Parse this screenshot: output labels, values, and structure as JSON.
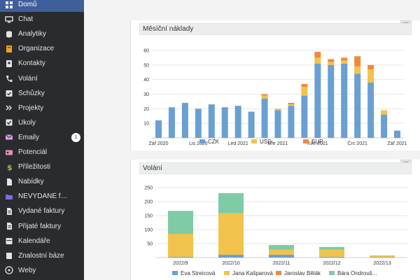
{
  "sidebar": {
    "items": [
      {
        "label": "Domů",
        "icon": "grid-icon",
        "active": true
      },
      {
        "label": "Chat",
        "icon": "monitor-icon"
      },
      {
        "label": "Analytiky",
        "icon": "database-icon"
      },
      {
        "label": "Organizace",
        "icon": "building-icon"
      },
      {
        "label": "Kontakty",
        "icon": "address-book-icon"
      },
      {
        "label": "Volání",
        "icon": "phone-icon"
      },
      {
        "label": "Schůzky",
        "icon": "calendar-check-icon"
      },
      {
        "label": "Projekty",
        "icon": "double-chevron-icon"
      },
      {
        "label": "Úkoly",
        "icon": "checkbox-icon"
      },
      {
        "label": "Emaily",
        "icon": "envelope-icon",
        "badge": "1"
      },
      {
        "label": "Potenciál",
        "icon": "id-card-icon"
      },
      {
        "label": "Příležitosti",
        "icon": "dollar-icon"
      },
      {
        "label": "Nabídky",
        "icon": "file-icon"
      },
      {
        "label": "NEVYDANÉ faktury",
        "icon": "folder-icon"
      },
      {
        "label": "Vydané faktury",
        "icon": "file-invoice-icon"
      },
      {
        "label": "Přijaté faktury",
        "icon": "file-invoice-icon"
      },
      {
        "label": "Kalendáře",
        "icon": "calendar-icon"
      },
      {
        "label": "Znalostní báze",
        "icon": "book-icon"
      },
      {
        "label": "Weby",
        "icon": "globe-icon"
      }
    ]
  },
  "panels": {
    "costs": {
      "title": "Měsíční náklady",
      "menu": "..."
    },
    "calls": {
      "title": "Volání",
      "menu": "..."
    }
  },
  "colors": {
    "blue": "#6a9fd2",
    "yellow": "#f1c34d",
    "orange": "#ee8a3f",
    "green": "#7ecba5",
    "sidebar": "#2a2b2e",
    "active": "#3f5f9b"
  },
  "chart_data": [
    {
      "type": "bar",
      "stacked": true,
      "ylim": [
        0,
        60
      ],
      "yticks": [
        10,
        20,
        30,
        40,
        50,
        60
      ],
      "xtick_labels": [
        {
          "index": 0,
          "label": "Zář 2020"
        },
        {
          "index": 3,
          "label": "Lis 2020"
        },
        {
          "index": 6,
          "label": "Led 2021"
        },
        {
          "index": 9,
          "label": "Bře 2021"
        },
        {
          "index": 12,
          "label": "Kvě 2021"
        },
        {
          "index": 15,
          "label": "Črc 2021"
        },
        {
          "index": 18,
          "label": "Zář 2021"
        },
        {
          "index": 21,
          "label": "Lis 2021"
        },
        {
          "index": 24,
          "label": "Led 2022"
        }
      ],
      "series": [
        {
          "name": "CZK",
          "color": "#6a9fd2",
          "values": [
            12,
            21,
            24,
            20,
            23,
            21,
            22,
            18,
            27,
            19,
            22,
            29,
            51,
            50,
            51,
            44,
            38,
            16,
            5
          ]
        },
        {
          "name": "USD",
          "color": "#f1c34d",
          "values": [
            0,
            0,
            0,
            0,
            0,
            0,
            0,
            0,
            2,
            1,
            1,
            6,
            4,
            2,
            2,
            5,
            9,
            3,
            0
          ]
        },
        {
          "name": "EUR",
          "color": "#ee8a3f",
          "values": [
            0,
            0,
            0,
            0,
            0,
            0,
            0,
            0,
            1,
            0,
            1,
            2,
            4,
            2,
            2,
            7,
            3,
            0,
            0
          ]
        }
      ],
      "legend_position": "bottom"
    },
    {
      "type": "bar",
      "stacked": true,
      "categories": [
        "2022/9",
        "2022/10",
        "2022/11",
        "2022/12",
        "2022/13"
      ],
      "ylim": [
        0,
        250
      ],
      "yticks": [
        50,
        100,
        150,
        200,
        250
      ],
      "series": [
        {
          "name": "Eva Streicová",
          "color": "#6a9fd2",
          "values": [
            3,
            10,
            10,
            3,
            2
          ]
        },
        {
          "name": "Jana Kašparová",
          "color": "#f1c34d",
          "values": [
            82,
            148,
            18,
            25,
            6
          ]
        },
        {
          "name": "Jaroslav Bělák",
          "color": "#ee8a3f",
          "values": [
            0,
            0,
            0,
            0,
            0
          ]
        },
        {
          "name": "Bára Ondrouš...",
          "color": "#7ecba5",
          "values": [
            82,
            72,
            17,
            10,
            0
          ]
        }
      ],
      "legend_position": "bottom"
    }
  ]
}
